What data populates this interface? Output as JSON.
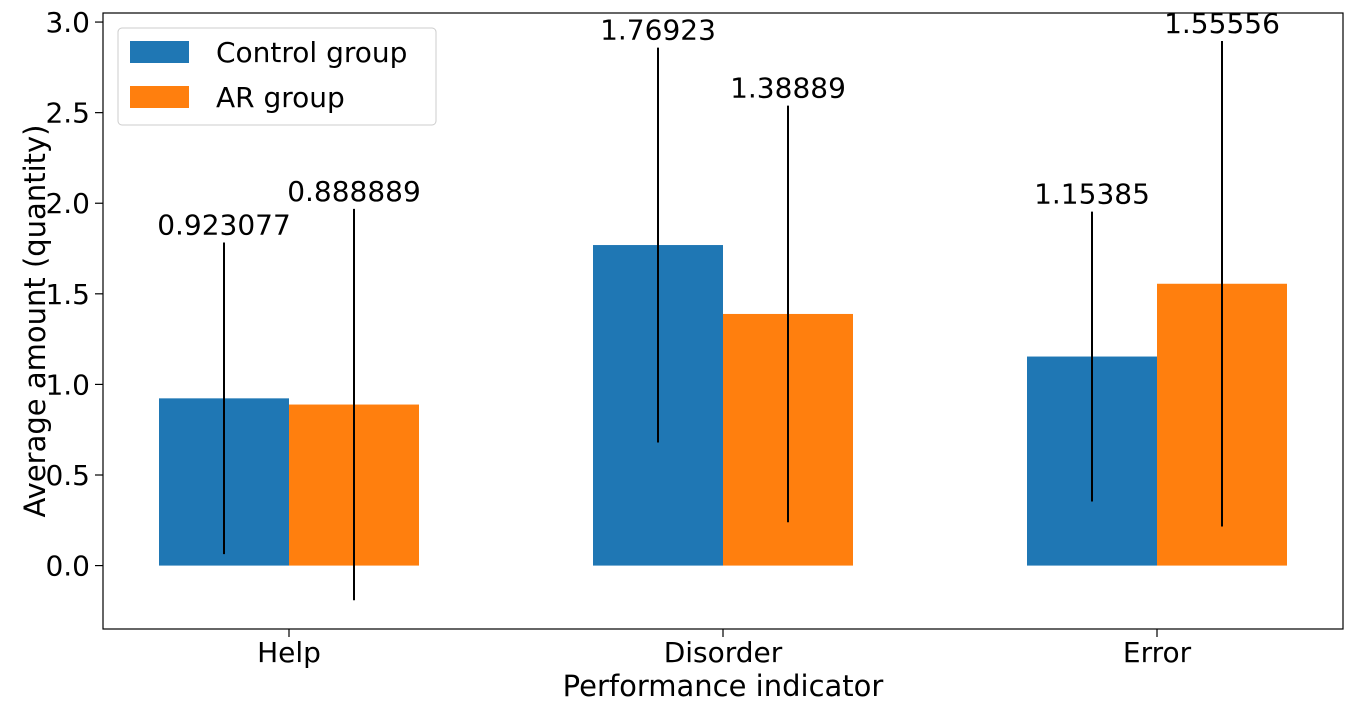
{
  "chart_data": {
    "type": "bar",
    "xlabel": "Performance indicator",
    "ylabel": "Average amount (quantity)",
    "categories": [
      "Help",
      "Disorder",
      "Error"
    ],
    "series": [
      {
        "name": "Control group",
        "color": "#1f77b4",
        "values": [
          0.923077,
          1.76923,
          1.15385
        ],
        "value_labels": [
          "0.923077",
          "1.76923",
          "1.15385"
        ],
        "error": [
          0.86,
          1.09,
          0.8
        ]
      },
      {
        "name": "AR group",
        "color": "#ff7f0e",
        "values": [
          0.888889,
          1.38889,
          1.55556
        ],
        "value_labels": [
          "0.888889",
          "1.38889",
          "1.55556"
        ],
        "error": [
          1.08,
          1.15,
          1.34
        ]
      }
    ],
    "ylim": [
      -0.35,
      3.05
    ],
    "yticks": [
      0.0,
      0.5,
      1.0,
      1.5,
      2.0,
      2.5,
      3.0
    ],
    "ytick_labels": [
      "0.0",
      "0.5",
      "1.0",
      "1.5",
      "2.0",
      "2.5",
      "3.0"
    ],
    "grid": false,
    "legend_position": "top-left"
  }
}
